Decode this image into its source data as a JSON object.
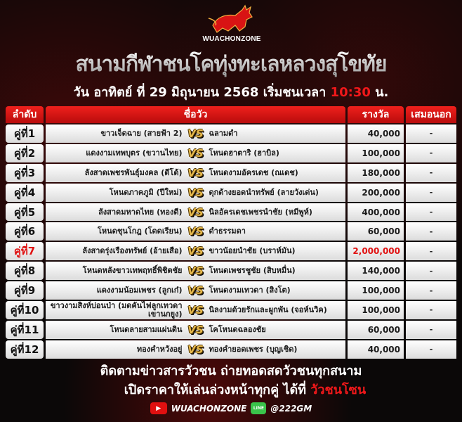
{
  "brand": {
    "name": "WUACHONZONE",
    "accent": "#f0181a"
  },
  "title": "สนามกีฬาชนโคทุ่งทะเลหลวงสุโขทัย",
  "subtitle": {
    "text": "วัน อาทิตย์ ที่ 29 มิถุนายน 2568 เริ่มชนเวลา",
    "time": "10:30",
    "suffix": "น."
  },
  "table": {
    "headers": {
      "order": "ลำดับ",
      "names": "ชื่อวัว",
      "prize": "รางวัล",
      "extra": "เสมอนอก"
    },
    "vs": "VS",
    "rows": [
      {
        "pair": "คู่ที่1",
        "left": "ขาวเจ็ดฉาย (สายฟ้า 2)",
        "right": "ฉลามดำ",
        "prize": "40,000",
        "extra": "-"
      },
      {
        "pair": "คู่ที่2",
        "left": "แดงงามเทพบุตร (ขวานไทย)",
        "right": "โหนดฮาตาริ (ฮาบิล)",
        "prize": "100,000",
        "extra": "-"
      },
      {
        "pair": "คู่ที่3",
        "left": "ลังสาดเพชรพันธุ์มงคล (ดีโด้)",
        "right": "โหนดงามอัครเดช (ณเดช)",
        "prize": "180,000",
        "extra": "-"
      },
      {
        "pair": "คู่ที่4",
        "left": "โหนดภาคภูมิ (ปีใหม่)",
        "right": "ดุกด้างยอดนำทรัพย์ (ลายวังเด่น)",
        "prize": "200,000",
        "extra": "-"
      },
      {
        "pair": "คู่ที่5",
        "left": "ลังสาดมหาดไทย (ทองดี)",
        "right": "นิลอัครเดชเพชรนำชัย (หมีพูห์)",
        "prize": "400,000",
        "extra": "-"
      },
      {
        "pair": "คู่ที่6",
        "left": "โหนดชุนโกฎ (โดดเรียน)",
        "right": "ดำธรรมดา",
        "prize": "60,000",
        "extra": "-"
      },
      {
        "pair": "คู่ที่7",
        "left": "ลังสาดรุ่งเรืองทรัพย์ (อ้ายเสือ)",
        "right": "ขาวน้อยนำชัย (บราห์มัน)",
        "prize": "2,000,000",
        "extra": "-",
        "highlight": true
      },
      {
        "pair": "คู่ที่8",
        "left": "โหนดหลังขาวเทพฤทธิ์พิชิตชัย",
        "right": "โหนดเพชรชูชัย (สิบหมื่น)",
        "prize": "140,000",
        "extra": "-"
      },
      {
        "pair": "คู่ที่9",
        "left": "แดงงามน้อมเพชร (ลูกเก๋)",
        "right": "โหนดงามเทวดา (สิงโต)",
        "prize": "100,000",
        "extra": "-"
      },
      {
        "pair": "คู่ที่10",
        "left": "ขาวงามสิงห์บ่อนป่า (มดคันไฟลูกเทวดาเขานกยูง)",
        "right": "นิลงามด้วยรักและผูกพัน (จอห์นวิค)",
        "prize": "100,000",
        "extra": "-"
      },
      {
        "pair": "คู่ที่11",
        "left": "โหนดลายสามแผ่นดิน",
        "right": "โคโหนดฉลองชัย",
        "prize": "60,000",
        "extra": "-"
      },
      {
        "pair": "คู่ที่12",
        "left": "ทองคำหวังอยู่",
        "right": "ทองคำยอดเพชร (บุญเชิด)",
        "prize": "40,000",
        "extra": "-"
      }
    ]
  },
  "footer": {
    "line1": "ติดตามข่าวสารวัวชน ถ่ายทอดสดวัวชนทุกสนาม",
    "line2": "เปิดราคาให้เล่นล่วงหน้าทุกคู่ ได้ที่",
    "line2_brand": "วัวชนโซน",
    "youtube": "WUACHONZONE",
    "line_id": "@222GM",
    "youtube_icon": "youtube-icon",
    "line_icon": "line-app-icon",
    "line_icon_label": "LINE"
  }
}
